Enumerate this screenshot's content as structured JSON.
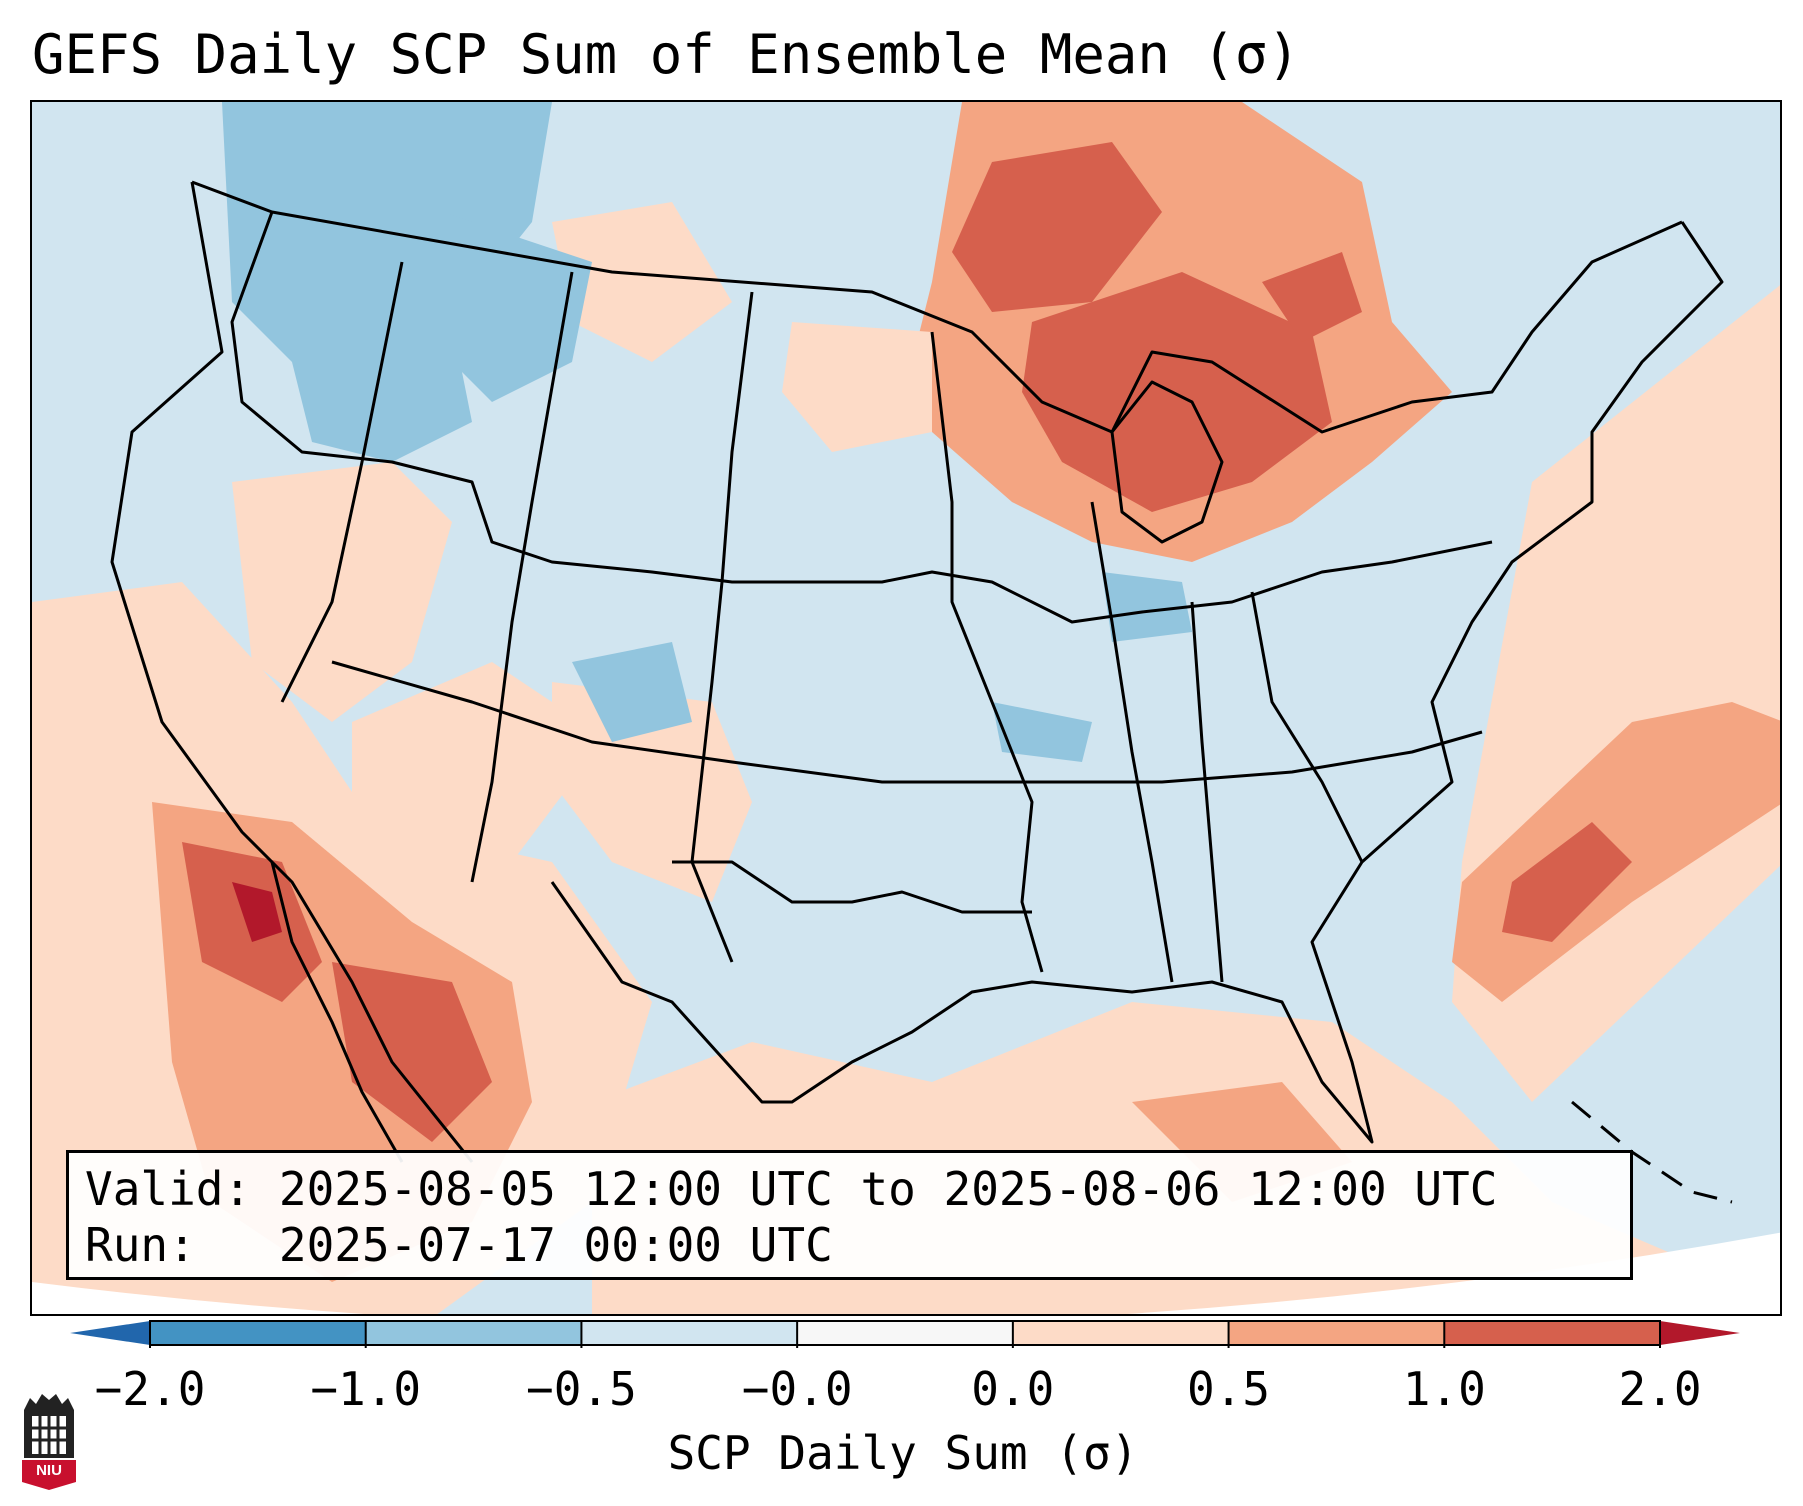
{
  "title": "GEFS Daily SCP Sum of Ensemble Mean (σ)",
  "info": {
    "valid_label": "Valid:",
    "valid_value": "2025-08-05 12:00 UTC to 2025-08-06 12:00 UTC",
    "run_label": "Run:",
    "run_value": "2025-07-17 00:00 UTC"
  },
  "colorbar": {
    "label": "SCP Daily Sum (σ)",
    "ticks": [
      "−2.0",
      "−1.0",
      "−0.5",
      "−0.0",
      "0.0",
      "0.5",
      "1.0",
      "2.0"
    ],
    "colors": [
      "#4393c3",
      "#92c5de",
      "#d1e5f0",
      "#f7f7f7",
      "#fddbc7",
      "#f4a582",
      "#d6604d"
    ],
    "under_color": "#2166ac",
    "over_color": "#b2182b"
  },
  "logo": {
    "text": "NIU",
    "icon": "niu-building-icon"
  },
  "colors": {
    "light_blue": "#d1e5f0",
    "mid_blue": "#92c5de",
    "light_red": "#fddbc7",
    "mid_red": "#f4a582",
    "red": "#d6604d",
    "dark_red": "#b2182b"
  }
}
